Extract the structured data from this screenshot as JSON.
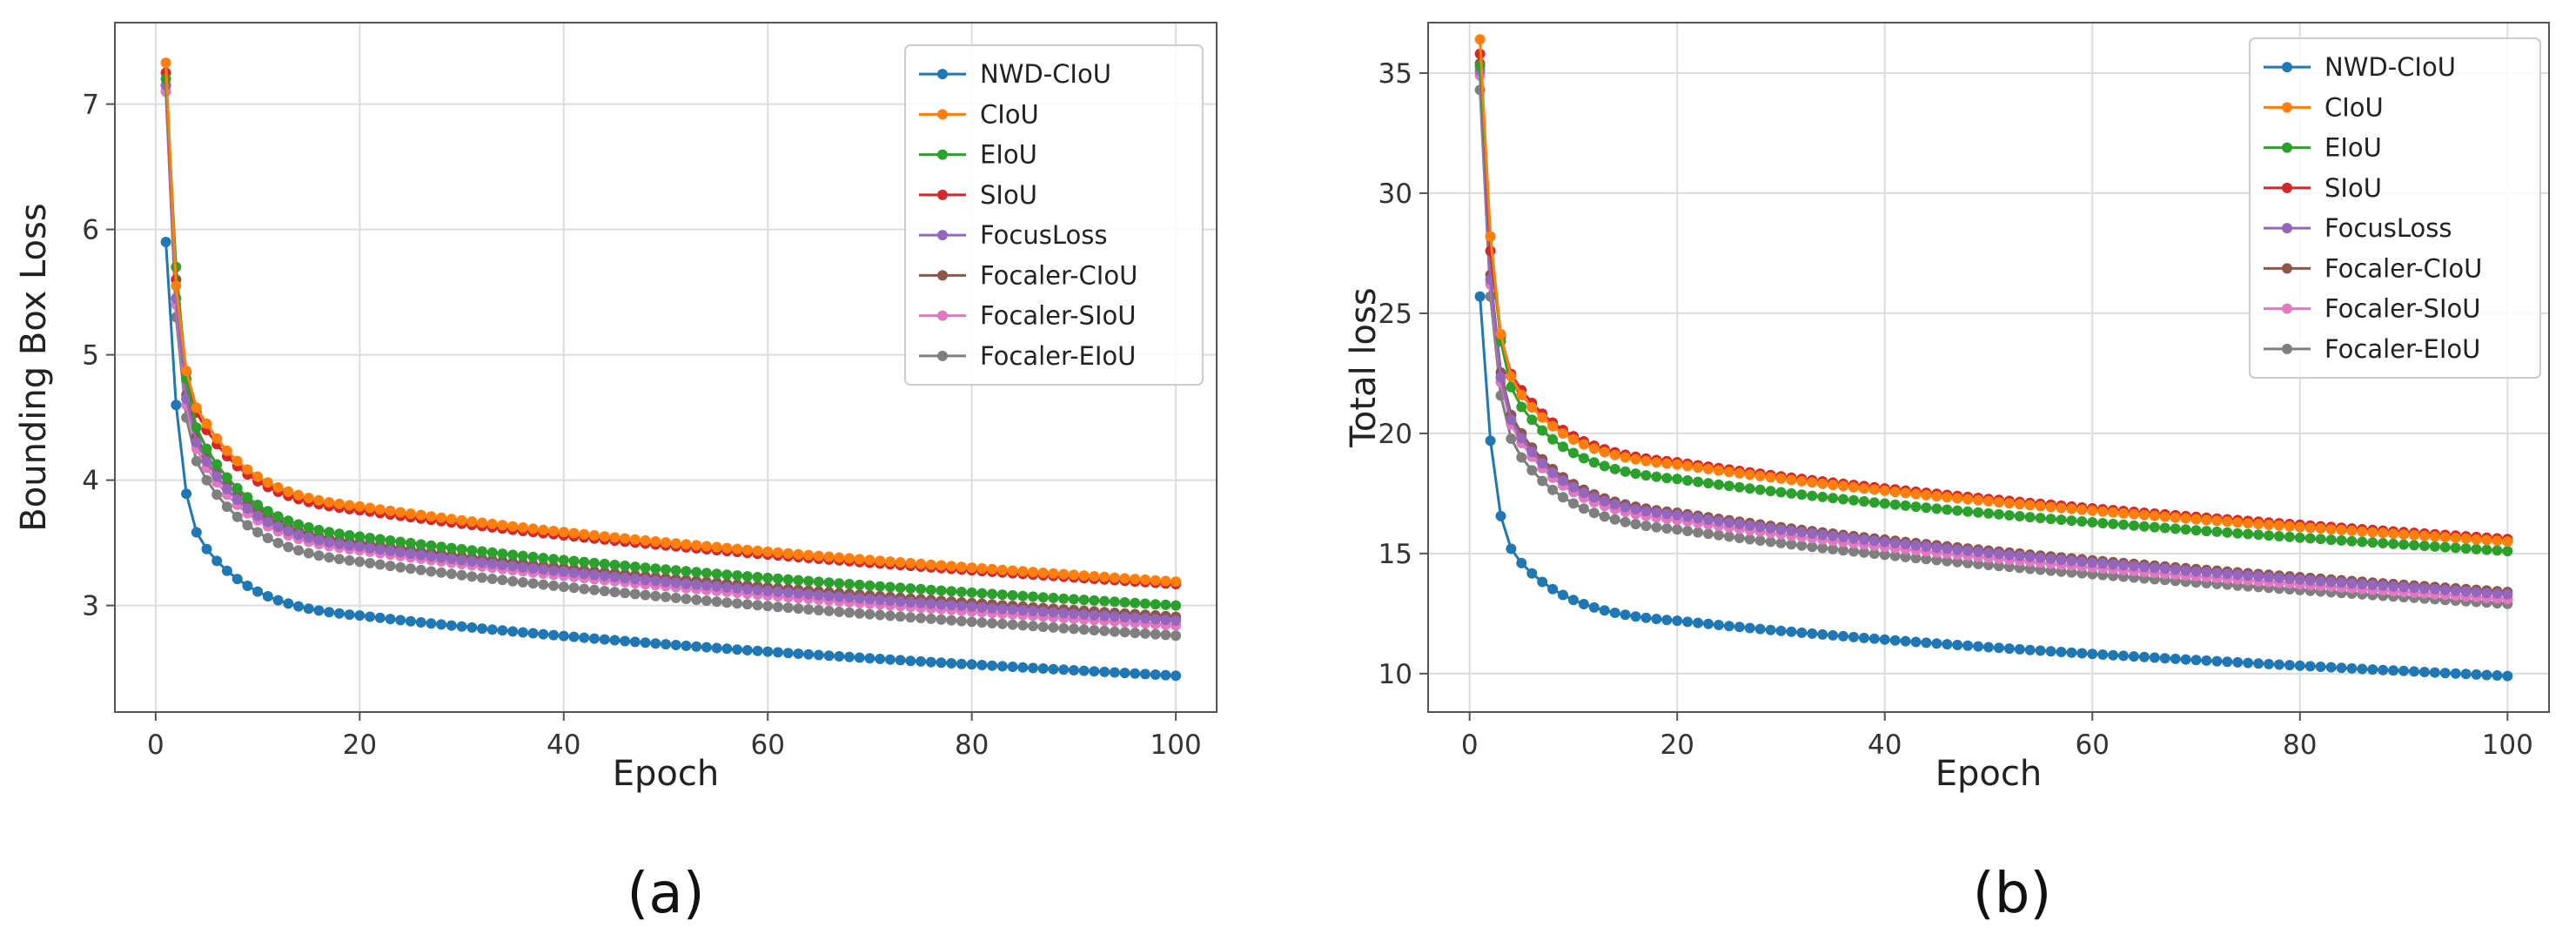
{
  "chart_data": [
    {
      "type": "line",
      "title": "",
      "panel_label": "(a)",
      "xlabel": "Epoch",
      "ylabel": "Bounding Box Loss",
      "xlim": [
        -4,
        104
      ],
      "ylim": [
        2.15,
        7.65
      ],
      "xticks": [
        0,
        20,
        40,
        60,
        80,
        100
      ],
      "yticks": [
        3,
        4,
        5,
        6,
        7
      ],
      "grid": true,
      "legend_position": "top-right",
      "series": [
        {
          "name": "NWD-CIoU",
          "color": "#1f77b4",
          "start": 5.9,
          "e2": 4.6,
          "e5": 3.45,
          "e20": 2.92,
          "end": 2.44
        },
        {
          "name": "CIoU",
          "color": "#ff7f0e",
          "start": 7.33,
          "e2": 5.55,
          "e5": 4.45,
          "e20": 3.79,
          "end": 3.19
        },
        {
          "name": "EIoU",
          "color": "#2ca02c",
          "start": 7.2,
          "e2": 5.7,
          "e5": 4.25,
          "e20": 3.55,
          "end": 3.0
        },
        {
          "name": "SIoU",
          "color": "#d62728",
          "start": 7.25,
          "e2": 5.6,
          "e5": 4.4,
          "e20": 3.76,
          "end": 3.17
        },
        {
          "name": "FocusLoss",
          "color": "#9467bd",
          "start": 7.15,
          "e2": 5.45,
          "e5": 4.15,
          "e20": 3.47,
          "end": 2.88
        },
        {
          "name": "Focaler-CIoU",
          "color": "#8c564b",
          "start": 7.15,
          "e2": 5.45,
          "e5": 4.2,
          "e20": 3.5,
          "end": 2.91
        },
        {
          "name": "Focaler-SIoU",
          "color": "#e377c2",
          "start": 7.1,
          "e2": 5.4,
          "e5": 4.1,
          "e20": 3.44,
          "end": 2.84
        },
        {
          "name": "Focaler-EIoU",
          "color": "#7f7f7f",
          "start": 7.1,
          "e2": 5.3,
          "e5": 4.0,
          "e20": 3.35,
          "end": 2.76
        }
      ]
    },
    {
      "type": "line",
      "title": "",
      "panel_label": "(b)",
      "xlabel": "Epoch",
      "ylabel": "Total loss",
      "xlim": [
        -4,
        104
      ],
      "ylim": [
        8.4,
        37.1
      ],
      "xticks": [
        0,
        20,
        40,
        60,
        80,
        100
      ],
      "yticks": [
        10,
        15,
        20,
        25,
        30,
        35
      ],
      "grid": true,
      "legend_position": "top-right",
      "series": [
        {
          "name": "NWD-CIoU",
          "color": "#1f77b4",
          "start": 25.7,
          "e2": 19.7,
          "e5": 14.6,
          "e20": 12.2,
          "end": 9.9
        },
        {
          "name": "CIoU",
          "color": "#ff7f0e",
          "start": 36.4,
          "e2": 28.2,
          "e5": 21.6,
          "e20": 18.7,
          "end": 15.5
        },
        {
          "name": "EIoU",
          "color": "#2ca02c",
          "start": 35.3,
          "e2": 28.2,
          "e5": 21.1,
          "e20": 18.1,
          "end": 15.1
        },
        {
          "name": "SIoU",
          "color": "#d62728",
          "start": 35.8,
          "e2": 27.6,
          "e5": 21.8,
          "e20": 18.8,
          "end": 15.6
        },
        {
          "name": "FocusLoss",
          "color": "#9467bd",
          "start": 35.1,
          "e2": 26.4,
          "e5": 19.8,
          "e20": 16.6,
          "end": 13.3
        },
        {
          "name": "Focaler-CIoU",
          "color": "#8c564b",
          "start": 35.4,
          "e2": 26.6,
          "e5": 20.0,
          "e20": 16.7,
          "end": 13.4
        },
        {
          "name": "Focaler-SIoU",
          "color": "#e377c2",
          "start": 34.9,
          "e2": 26.2,
          "e5": 19.6,
          "e20": 16.4,
          "end": 13.1
        },
        {
          "name": "Focaler-EIoU",
          "color": "#7f7f7f",
          "start": 34.3,
          "e2": 25.7,
          "e5": 19.0,
          "e20": 16.0,
          "end": 12.9
        }
      ]
    }
  ]
}
